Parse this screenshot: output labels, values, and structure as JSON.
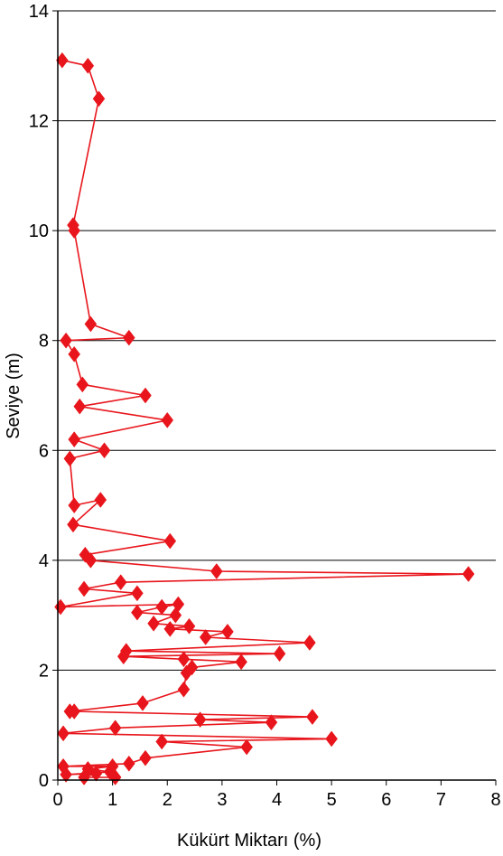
{
  "chart_data": {
    "type": "line",
    "xlabel": "Kükürt Miktarı (%)",
    "ylabel": "Seviye (m)",
    "xlim": [
      0,
      8
    ],
    "ylim": [
      0,
      14
    ],
    "x_ticks": [
      "0",
      "1",
      "2",
      "3",
      "4",
      "5",
      "6",
      "7",
      "8"
    ],
    "y_ticks": [
      "0",
      "2",
      "4",
      "6",
      "8",
      "10",
      "12",
      "14"
    ],
    "grid": "horizontal",
    "legend": "none",
    "series_color": "#e8161c",
    "marker": "diamond",
    "series": [
      {
        "points": [
          {
            "x": 0.08,
            "y": 13.1
          },
          {
            "x": 0.55,
            "y": 13.0
          },
          {
            "x": 0.75,
            "y": 12.4
          },
          {
            "x": 0.28,
            "y": 10.1
          },
          {
            "x": 0.3,
            "y": 10.0
          },
          {
            "x": 0.6,
            "y": 8.3
          },
          {
            "x": 1.3,
            "y": 8.05
          },
          {
            "x": 0.15,
            "y": 8.0
          },
          {
            "x": 0.3,
            "y": 7.75
          },
          {
            "x": 0.45,
            "y": 7.2
          },
          {
            "x": 1.6,
            "y": 7.0
          },
          {
            "x": 0.4,
            "y": 6.8
          },
          {
            "x": 2.0,
            "y": 6.55
          },
          {
            "x": 0.3,
            "y": 6.2
          },
          {
            "x": 0.85,
            "y": 6.0
          },
          {
            "x": 0.22,
            "y": 5.85
          },
          {
            "x": 0.3,
            "y": 5.0
          },
          {
            "x": 0.78,
            "y": 5.1
          },
          {
            "x": 0.28,
            "y": 4.65
          },
          {
            "x": 2.05,
            "y": 4.35
          },
          {
            "x": 0.5,
            "y": 4.1
          },
          {
            "x": 0.6,
            "y": 4.0
          },
          {
            "x": 2.9,
            "y": 3.8
          },
          {
            "x": 7.5,
            "y": 3.75
          },
          {
            "x": 1.15,
            "y": 3.6
          },
          {
            "x": 0.48,
            "y": 3.48
          },
          {
            "x": 1.45,
            "y": 3.4
          },
          {
            "x": 0.05,
            "y": 3.15
          },
          {
            "x": 2.2,
            "y": 3.2
          },
          {
            "x": 1.9,
            "y": 3.15
          },
          {
            "x": 1.45,
            "y": 3.05
          },
          {
            "x": 2.15,
            "y": 3.0
          },
          {
            "x": 1.75,
            "y": 2.85
          },
          {
            "x": 2.4,
            "y": 2.8
          },
          {
            "x": 2.05,
            "y": 2.75
          },
          {
            "x": 3.1,
            "y": 2.7
          },
          {
            "x": 2.7,
            "y": 2.6
          },
          {
            "x": 4.6,
            "y": 2.5
          },
          {
            "x": 1.25,
            "y": 2.35
          },
          {
            "x": 4.05,
            "y": 2.3
          },
          {
            "x": 1.2,
            "y": 2.25
          },
          {
            "x": 2.3,
            "y": 2.2
          },
          {
            "x": 3.35,
            "y": 2.15
          },
          {
            "x": 2.45,
            "y": 2.05
          },
          {
            "x": 2.35,
            "y": 1.95
          },
          {
            "x": 2.3,
            "y": 1.65
          },
          {
            "x": 1.55,
            "y": 1.4
          },
          {
            "x": 0.22,
            "y": 1.25
          },
          {
            "x": 0.3,
            "y": 1.25
          },
          {
            "x": 4.65,
            "y": 1.15
          },
          {
            "x": 2.6,
            "y": 1.1
          },
          {
            "x": 3.9,
            "y": 1.05
          },
          {
            "x": 1.05,
            "y": 0.95
          },
          {
            "x": 0.1,
            "y": 0.85
          },
          {
            "x": 5.0,
            "y": 0.75
          },
          {
            "x": 1.9,
            "y": 0.7
          },
          {
            "x": 3.45,
            "y": 0.6
          },
          {
            "x": 1.6,
            "y": 0.4
          },
          {
            "x": 1.3,
            "y": 0.3
          },
          {
            "x": 0.1,
            "y": 0.25
          },
          {
            "x": 1.0,
            "y": 0.25
          },
          {
            "x": 0.55,
            "y": 0.2
          },
          {
            "x": 0.95,
            "y": 0.15
          },
          {
            "x": 0.15,
            "y": 0.1
          },
          {
            "x": 0.7,
            "y": 0.12
          },
          {
            "x": 0.48,
            "y": 0.05
          },
          {
            "x": 1.05,
            "y": 0.05
          }
        ]
      }
    ]
  }
}
